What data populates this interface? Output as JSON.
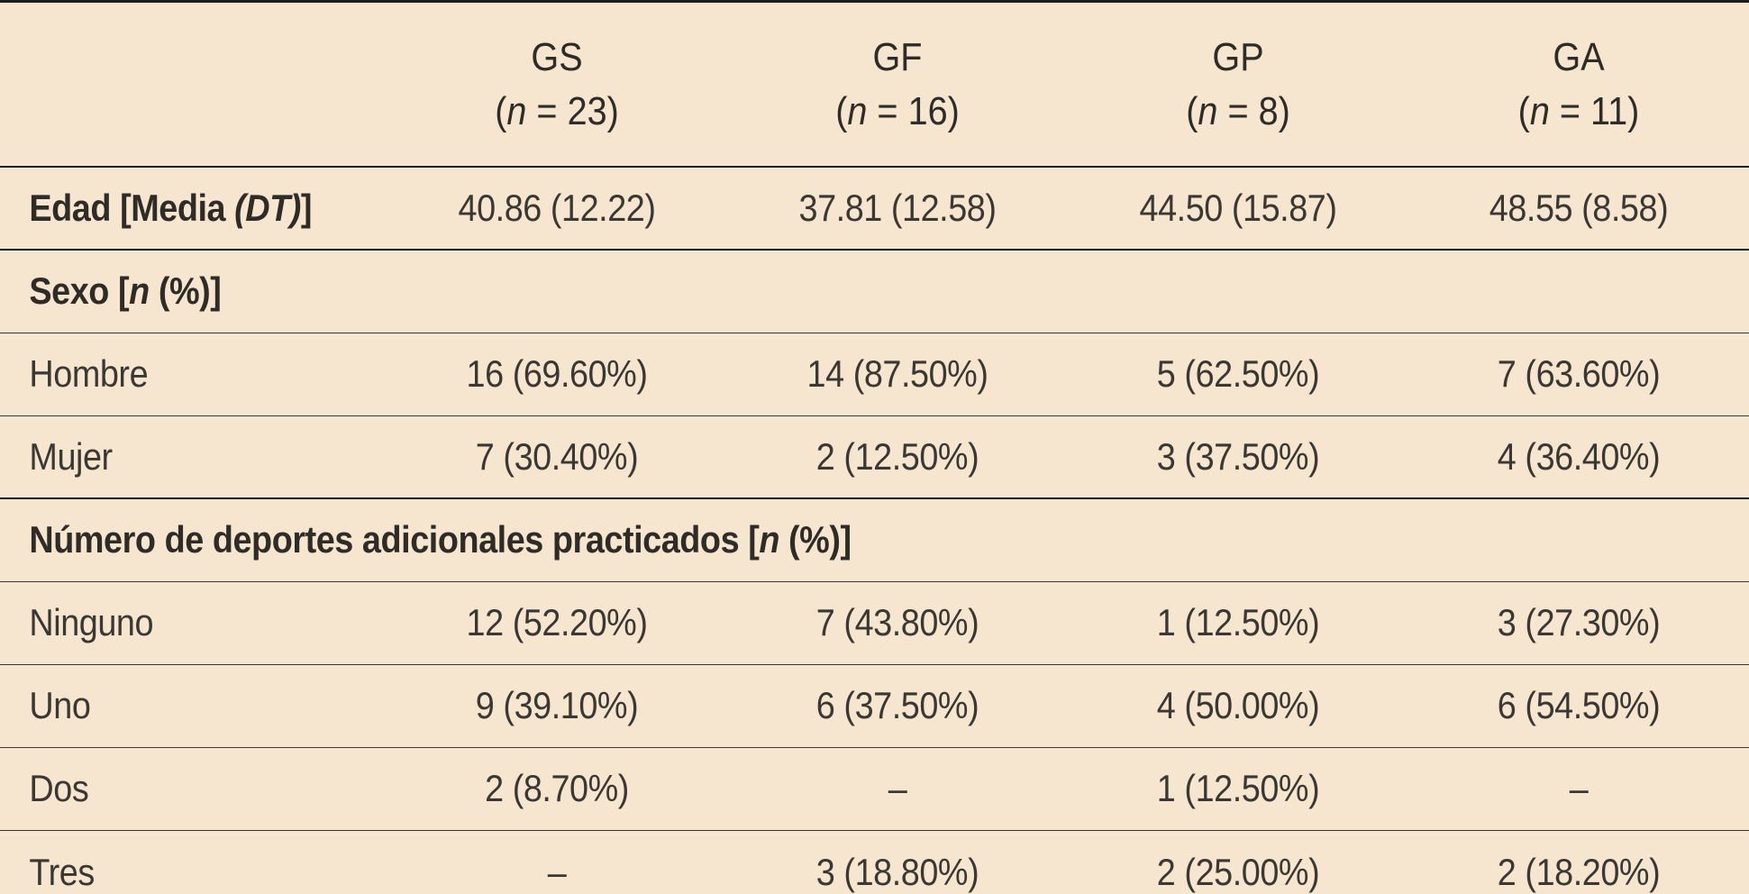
{
  "header": {
    "columns": [
      {
        "name": "GS",
        "n_prefix": "(",
        "n_symbol": "n",
        "n_suffix": " = 23)"
      },
      {
        "name": "GF",
        "n_prefix": "(",
        "n_symbol": "n",
        "n_suffix": " = 16)"
      },
      {
        "name": "GP",
        "n_prefix": "(",
        "n_symbol": "n",
        "n_suffix": " = 8)"
      },
      {
        "name": "GA",
        "n_prefix": "(",
        "n_symbol": "n",
        "n_suffix": " = 11)"
      }
    ]
  },
  "edad": {
    "label_pre": "Edad [Media ",
    "label_italic": "(DT)",
    "label_post": "]",
    "values": [
      "40.86 (12.22)",
      "37.81 (12.58)",
      "44.50 (15.87)",
      "48.55 (8.58)"
    ]
  },
  "sexo": {
    "label_pre": "Sexo [",
    "label_italic": "n",
    "label_post": " (%)]",
    "rows": [
      {
        "label": "Hombre",
        "values": [
          "16 (69.60%)",
          "14 (87.50%)",
          "5 (62.50%)",
          "7 (63.60%)"
        ]
      },
      {
        "label": "Mujer",
        "values": [
          "7 (30.40%)",
          "2 (12.50%)",
          "3 (37.50%)",
          "4 (36.40%)"
        ]
      }
    ]
  },
  "deportes": {
    "label_pre": "Número de deportes adicionales practicados [",
    "label_italic": "n",
    "label_post": " (%)]",
    "rows": [
      {
        "label": "Ninguno",
        "values": [
          "12 (52.20%)",
          "7 (43.80%)",
          "1 (12.50%)",
          "3 (27.30%)"
        ]
      },
      {
        "label": "Uno",
        "values": [
          "9 (39.10%)",
          "6 (37.50%)",
          "4 (50.00%)",
          "6 (54.50%)"
        ]
      },
      {
        "label": "Dos",
        "values": [
          "2 (8.70%)",
          "–",
          "1 (12.50%)",
          "–"
        ]
      },
      {
        "label": "Tres",
        "values": [
          "–",
          "3 (18.80%)",
          "2 (25.00%)",
          "2 (18.20%)"
        ]
      }
    ]
  }
}
